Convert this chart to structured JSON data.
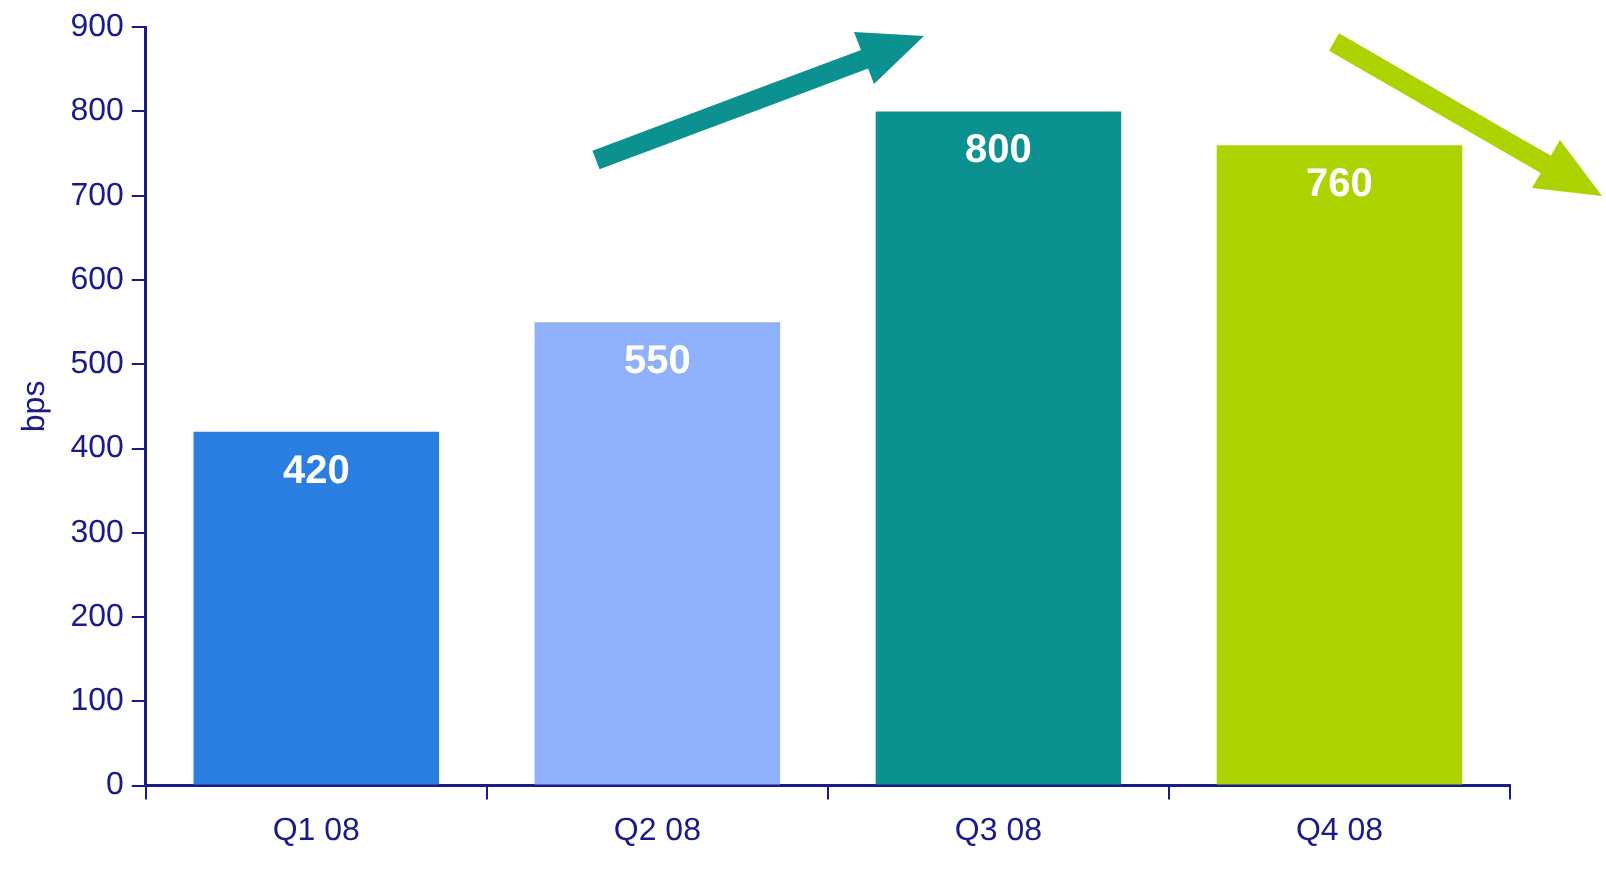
{
  "chart_data": {
    "type": "bar",
    "ylabel": "bps",
    "categories": [
      "Q1 08",
      "Q2 08",
      "Q3 08",
      "Q4 08"
    ],
    "values": [
      420,
      550,
      800,
      760
    ],
    "colors": [
      "#2a7de1",
      "#8fb0fb",
      "#0c9191",
      "#acd200"
    ],
    "ylim": [
      0,
      900
    ],
    "yticks": [
      0,
      100,
      200,
      300,
      400,
      500,
      600,
      700,
      800,
      900
    ],
    "grid": false,
    "legend": false,
    "data_labels": true
  }
}
